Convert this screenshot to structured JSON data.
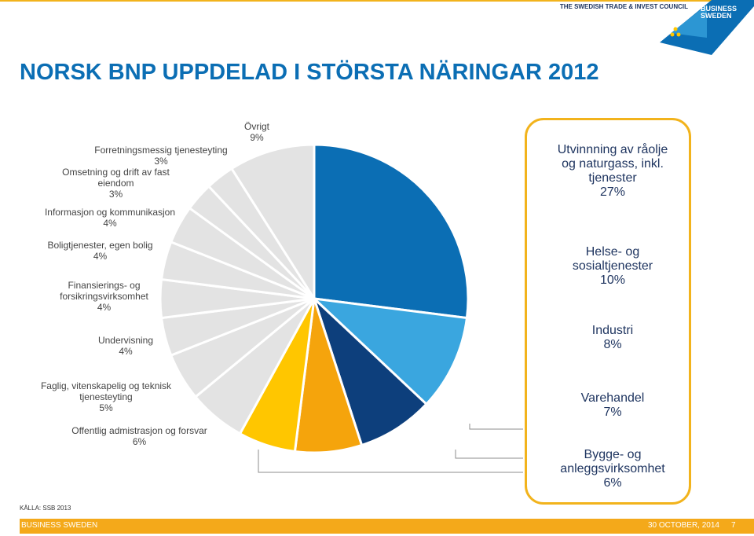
{
  "header": {
    "org": "THE SWEDISH TRADE & INVEST COUNCIL",
    "brand_line1": "BUSINESS",
    "brand_line2": "SWEDEN"
  },
  "slide": {
    "title": "NORSK BNP UPPDELAD I STÖRSTA NÄRINGAR 2012"
  },
  "chart_data": {
    "type": "pie",
    "title": "NORSK BNP UPPDELAD I STÖRSTA NÄRINGAR 2012",
    "slices": [
      {
        "label": "Utvinnning av råolje og naturgass, inkl. tjenester",
        "value": 27,
        "value_label": "27%",
        "color": "#0b6eb4"
      },
      {
        "label": "Helse- og sosialtjenester",
        "value": 10,
        "value_label": "10%",
        "color": "#3aa6df"
      },
      {
        "label": "Industri",
        "value": 8,
        "value_label": "8%",
        "color": "#0d3f7c"
      },
      {
        "label": "Varehandel",
        "value": 7,
        "value_label": "7%",
        "color": "#f5a40c"
      },
      {
        "label": "Bygge- og anleggsvirksomhet",
        "value": 6,
        "value_label": "6%",
        "color": "#ffc600"
      },
      {
        "label": "Offentlig admistrasjon og forsvar",
        "value": 6,
        "value_label": "6%",
        "color": "#e3e3e3"
      },
      {
        "label": "Faglig, vitenskapelig og teknisk tjenesteyting",
        "value": 5,
        "value_label": "5%",
        "color": "#e3e3e3"
      },
      {
        "label": "Undervisning",
        "value": 4,
        "value_label": "4%",
        "color": "#e3e3e3"
      },
      {
        "label": "Finansierings- og forsikringsvirksomhet",
        "value": 4,
        "value_label": "4%",
        "color": "#e3e3e3"
      },
      {
        "label": "Boligtjenester, egen bolig",
        "value": 4,
        "value_label": "4%",
        "color": "#e3e3e3"
      },
      {
        "label": "Informasjon og kommunikasjon",
        "value": 4,
        "value_label": "4%",
        "color": "#e3e3e3"
      },
      {
        "label": "Omsetning og drift av fast eiendom",
        "value": 3,
        "value_label": "3%",
        "color": "#e3e3e3"
      },
      {
        "label": "Forretningsmessig tjenesteyting",
        "value": 3,
        "value_label": "3%",
        "color": "#e3e3e3"
      },
      {
        "label": "Övrigt",
        "value": 9,
        "value_label": "9%",
        "color": "#e3e3e3"
      }
    ],
    "left_labels": [
      {
        "lines": [
          "Forretningsmessig tjenesteyting",
          "3%"
        ]
      },
      {
        "lines": [
          "Omsetning og drift av fast",
          "eiendom",
          "3%"
        ]
      },
      {
        "lines": [
          "Informasjon og kommunikasjon",
          "4%"
        ]
      },
      {
        "lines": [
          "Boligtjenester, egen bolig",
          "4%"
        ]
      },
      {
        "lines": [
          "Finansierings- og",
          "forsikringsvirksomhet",
          "4%"
        ]
      },
      {
        "lines": [
          "Undervisning",
          "4%"
        ]
      },
      {
        "lines": [
          "Faglig, vitenskapelig og teknisk",
          "tjenesteyting",
          "5%"
        ]
      },
      {
        "lines": [
          "Offentlig admistrasjon og forsvar",
          "6%"
        ]
      },
      {
        "lines": [
          "Övrigt",
          "9%"
        ]
      }
    ],
    "right_labels": [
      {
        "lines": [
          "Utvinnning av råolje",
          "og naturgass, inkl.",
          "tjenester",
          "27%"
        ]
      },
      {
        "lines": [
          "Helse- og",
          "sosialtjenester",
          "10%"
        ]
      },
      {
        "lines": [
          "Industri",
          "8%"
        ]
      },
      {
        "lines": [
          "Varehandel",
          "7%"
        ]
      },
      {
        "lines": [
          "Bygge- og",
          "anleggsvirksomhet",
          "6%"
        ]
      }
    ]
  },
  "source": "KÄLLA: SSB 2013",
  "footer": {
    "left": "BUSINESS SWEDEN",
    "date": "30 OCTOBER, 2014",
    "page": "7"
  }
}
